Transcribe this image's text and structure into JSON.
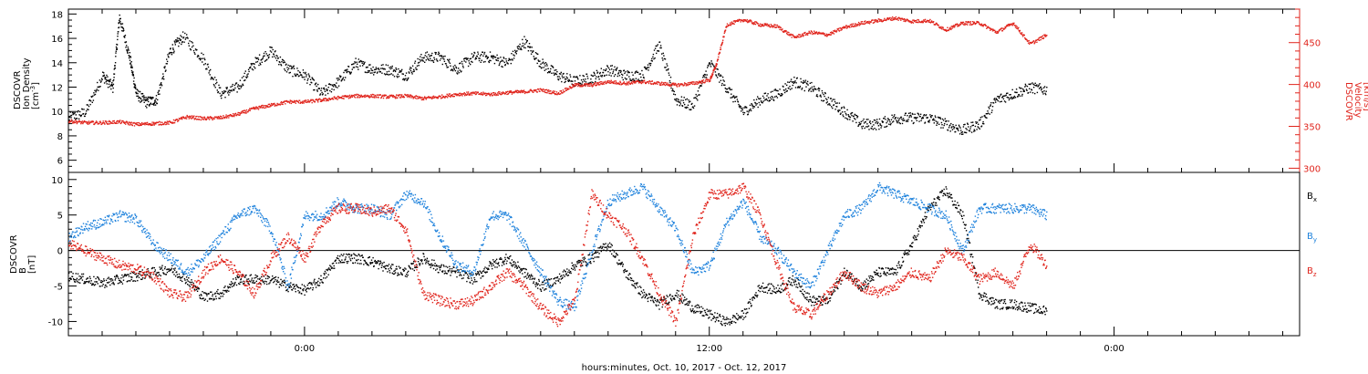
{
  "colors": {
    "density": "#000000",
    "velocity": "#e0241c",
    "bx": "#000000",
    "by": "#1e82dc",
    "bz": "#e0241c",
    "axis": "#000000"
  },
  "chart_data": [
    {
      "type": "scatter",
      "panel": "top",
      "ylabel_left": [
        "DSCOVR",
        "Ion Density",
        "[cm",
        "-3",
        "]"
      ],
      "ylabel_right": [
        "DSCOVR",
        "Velocity",
        "[km/s]"
      ],
      "xlim_hours": [
        -7,
        29.5
      ],
      "ylim_left": [
        5,
        18.4
      ],
      "left_ticks": [
        6,
        8,
        10,
        12,
        14,
        16,
        18
      ],
      "ylim_right": [
        295,
        490
      ],
      "right_ticks": [
        300,
        350,
        400,
        450
      ],
      "series": [
        {
          "axis": "left",
          "color_key": "density",
          "x": [
            -7,
            -6.5,
            -6,
            -5.7,
            -5.5,
            -5.2,
            -5,
            -4.7,
            -4.4,
            -4,
            -3.6,
            -3,
            -2.5,
            -2,
            -1.5,
            -1,
            -0.5,
            0,
            0.5,
            1,
            1.5,
            2,
            2.5,
            3,
            3.5,
            4,
            4.5,
            5,
            5.5,
            6,
            6.5,
            7,
            7.5,
            8,
            8.5,
            9,
            9.5,
            10,
            10.5,
            11,
            11.5,
            12,
            12.5,
            13,
            13.5,
            14,
            14.5,
            15,
            15.5,
            16,
            16.5,
            17,
            17.5,
            18,
            18.5,
            19,
            19.5,
            20,
            20.5,
            21,
            21.5,
            22
          ],
          "y": [
            9.5,
            10,
            13,
            12,
            17.8,
            14.5,
            11.5,
            10.8,
            11,
            15,
            16.2,
            14.3,
            11.5,
            12,
            14,
            15,
            13.5,
            13,
            11.5,
            12.5,
            14,
            13.5,
            13.5,
            13,
            14.5,
            14.5,
            13.5,
            14.5,
            14.5,
            14,
            15.8,
            14,
            13,
            12.5,
            12.8,
            13.5,
            13,
            13,
            15.5,
            11,
            10.5,
            14,
            12,
            10,
            11,
            11.5,
            12.5,
            12,
            11,
            10,
            9,
            9,
            9.5,
            9.5,
            9.5,
            9,
            8.5,
            9,
            11,
            11.5,
            12,
            11.8
          ]
        },
        {
          "axis": "right",
          "color_key": "velocity",
          "x": [
            -7,
            -6.5,
            -6,
            -5.5,
            -5,
            -4.5,
            -4,
            -3.5,
            -3,
            -2.5,
            -2,
            -1.5,
            -1,
            -0.5,
            0,
            0.5,
            1,
            1.5,
            2,
            2.5,
            3,
            3.5,
            4,
            4.5,
            5,
            5.5,
            6,
            6.5,
            7,
            7.5,
            8,
            8.5,
            9,
            9.5,
            10,
            10.5,
            11,
            11.5,
            12,
            12.2,
            12.5,
            13,
            13.5,
            14,
            14.5,
            15,
            15.5,
            16,
            16.5,
            17,
            17.5,
            18,
            18.5,
            19,
            19.5,
            20,
            20.5,
            21,
            21.5,
            22
          ],
          "y": [
            357,
            355,
            355,
            356,
            353,
            354,
            355,
            362,
            360,
            361,
            365,
            372,
            376,
            380,
            380,
            382,
            385,
            387,
            387,
            386,
            387,
            384,
            386,
            389,
            390,
            389,
            391,
            392,
            394,
            390,
            400,
            400,
            404,
            402,
            404,
            402,
            400,
            402,
            406,
            425,
            472,
            478,
            472,
            470,
            457,
            463,
            460,
            469,
            474,
            477,
            480,
            476,
            477,
            466,
            474,
            474,
            463,
            474,
            449,
            460
          ]
        }
      ]
    },
    {
      "type": "scatter",
      "panel": "bottom",
      "ylabel_left": [
        "DSCOVR",
        "B",
        "[nT]"
      ],
      "x_axis_label": "hours:minutes, Oct. 10, 2017 - Oct. 12, 2017",
      "x_tick_labels": [
        {
          "at": 0,
          "label": "0:00"
        },
        {
          "at": 12,
          "label": "12:00"
        },
        {
          "at": 24,
          "label": "0:00"
        }
      ],
      "xlim_hours": [
        -7,
        29.5
      ],
      "ylim": [
        -12,
        11
      ],
      "left_ticks": [
        -10,
        -5,
        0,
        5,
        10
      ],
      "zero_line": true,
      "legend": [
        {
          "base": "B",
          "sub": "x",
          "color_key": "bx"
        },
        {
          "base": "B",
          "sub": "y",
          "color_key": "by"
        },
        {
          "base": "B",
          "sub": "z",
          "color_key": "bz"
        }
      ],
      "series": [
        {
          "name": "Bx",
          "color_key": "bx",
          "x": [
            -7,
            -6.5,
            -6,
            -5.5,
            -5,
            -4.5,
            -4,
            -3.5,
            -3,
            -2.5,
            -2,
            -1.5,
            -1,
            -0.5,
            0,
            0.5,
            1,
            1.5,
            2,
            2.5,
            3,
            3.5,
            4,
            4.5,
            5,
            5.5,
            6,
            6.5,
            7,
            7.5,
            8,
            8.5,
            9,
            9.5,
            10,
            10.5,
            11,
            11.5,
            12,
            12.5,
            13,
            13.5,
            14,
            14.5,
            15,
            15.5,
            16,
            16.5,
            17,
            17.5,
            18,
            18.5,
            19,
            19.5,
            20,
            20.5,
            21,
            21.5,
            22
          ],
          "y": [
            -3.5,
            -4,
            -4.5,
            -4,
            -3.5,
            -3,
            -2.5,
            -4,
            -6.5,
            -6,
            -4,
            -4,
            -4,
            -5,
            -5.5,
            -4,
            -1,
            -1,
            -1.5,
            -2.5,
            -3,
            -1,
            -2.5,
            -3,
            -4,
            -2,
            -1,
            -3,
            -5,
            -4,
            -2,
            -1,
            1,
            -3,
            -6,
            -7.5,
            -6,
            -8,
            -9,
            -10,
            -9,
            -5,
            -5.5,
            -4,
            -7,
            -7,
            -3,
            -5,
            -3,
            -3,
            1,
            6,
            8.5,
            5,
            -6,
            -7.5,
            -7.5,
            -8,
            -8.5
          ]
        },
        {
          "name": "By",
          "color_key": "by",
          "x": [
            -7,
            -6.5,
            -6,
            -5.5,
            -5,
            -4.5,
            -4,
            -3.5,
            -3,
            -2.5,
            -2,
            -1.5,
            -1,
            -0.5,
            0,
            0.5,
            1,
            1.5,
            2,
            2.5,
            3,
            3.5,
            4,
            4.5,
            5,
            5.5,
            6,
            6.5,
            7,
            7.5,
            8,
            8.5,
            9,
            9.5,
            10,
            10.5,
            11,
            11.5,
            12,
            12.5,
            13,
            13.5,
            14,
            14.5,
            15,
            15.5,
            16,
            16.5,
            17,
            17.5,
            18,
            18.5,
            19,
            19.5,
            20,
            20.5,
            21,
            21.5,
            22
          ],
          "y": [
            2,
            3.5,
            4,
            5,
            4.5,
            1,
            -1,
            -3,
            -1,
            2,
            5,
            6,
            3,
            -5,
            5,
            5,
            7,
            6,
            6,
            5,
            8,
            7,
            2,
            -2,
            -3,
            5,
            5,
            1,
            -3,
            -7,
            -8,
            0,
            7,
            8,
            9,
            6,
            3,
            -3,
            -2,
            4,
            7,
            2,
            0,
            -3,
            -5,
            0,
            5,
            6,
            9,
            8,
            7,
            6,
            5,
            0,
            6,
            6,
            6,
            6,
            5
          ]
        },
        {
          "name": "Bz",
          "color_key": "bz",
          "x": [
            -7,
            -6.5,
            -6,
            -5.5,
            -5,
            -4.5,
            -4,
            -3.5,
            -3,
            -2.5,
            -2,
            -1.5,
            -1,
            -0.5,
            0,
            0.5,
            1,
            1.5,
            2,
            2.5,
            3,
            3.5,
            4,
            4.5,
            5,
            5.5,
            6,
            6.5,
            7,
            7.5,
            8,
            8.5,
            9,
            9.5,
            10,
            10.5,
            11,
            11.5,
            12,
            12.5,
            13,
            13.5,
            14,
            14.5,
            15,
            15.5,
            16,
            16.5,
            17,
            17.5,
            18,
            18.5,
            19,
            19.5,
            20,
            20.5,
            21,
            21.5,
            22
          ],
          "y": [
            1,
            0,
            -1,
            -2,
            -2.5,
            -3.5,
            -6,
            -6.5,
            -3,
            -1,
            -3,
            -6,
            -1,
            2,
            -1,
            4,
            6,
            6,
            5.5,
            6,
            3,
            -6,
            -7,
            -7.5,
            -7,
            -5,
            -3,
            -5,
            -8,
            -10,
            -7,
            8,
            5,
            3,
            -1,
            -6,
            -10,
            2,
            8,
            8,
            9,
            5,
            -2,
            -8,
            -9,
            -6,
            -3,
            -5,
            -6,
            -5,
            -3,
            -4,
            0,
            -1,
            -4,
            -3,
            -5,
            1,
            -2
          ]
        }
      ]
    }
  ]
}
